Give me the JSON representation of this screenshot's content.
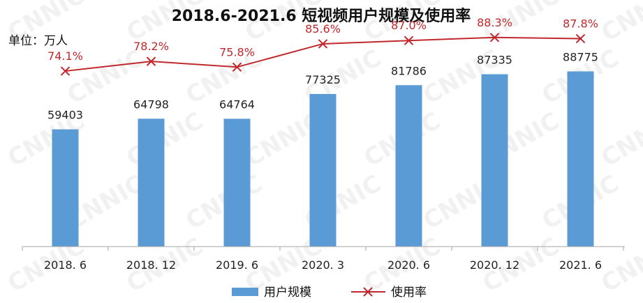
{
  "chart_data": {
    "type": "bar",
    "title": "2018.6-2021.6 短视频用户规模及使用率",
    "unit_label": "单位：万人",
    "categories": [
      "2018. 6",
      "2018. 12",
      "2019. 6",
      "2020. 3",
      "2020. 6",
      "2020. 12",
      "2021. 6"
    ],
    "series": [
      {
        "name": "用户规模",
        "type": "bar",
        "values": [
          59403,
          64798,
          64764,
          77325,
          81786,
          87335,
          88775
        ],
        "labels": [
          "59403",
          "64798",
          "64764",
          "77325",
          "81786",
          "87335",
          "88775"
        ],
        "color": "#5b9bd5"
      },
      {
        "name": "使用率",
        "type": "line",
        "values": [
          74.1,
          78.2,
          75.8,
          85.6,
          87.0,
          88.3,
          87.8
        ],
        "labels": [
          "74.1%",
          "78.2%",
          "75.8%",
          "85.6%",
          "87.0%",
          "88.3%",
          "87.8%"
        ],
        "color": "#c0282d"
      }
    ],
    "bar_axis_range": [
      0,
      120000
    ],
    "line_axis_range": [
      0,
      100
    ],
    "grid": false,
    "legend_position": "bottom"
  },
  "watermark": "CNNIC"
}
